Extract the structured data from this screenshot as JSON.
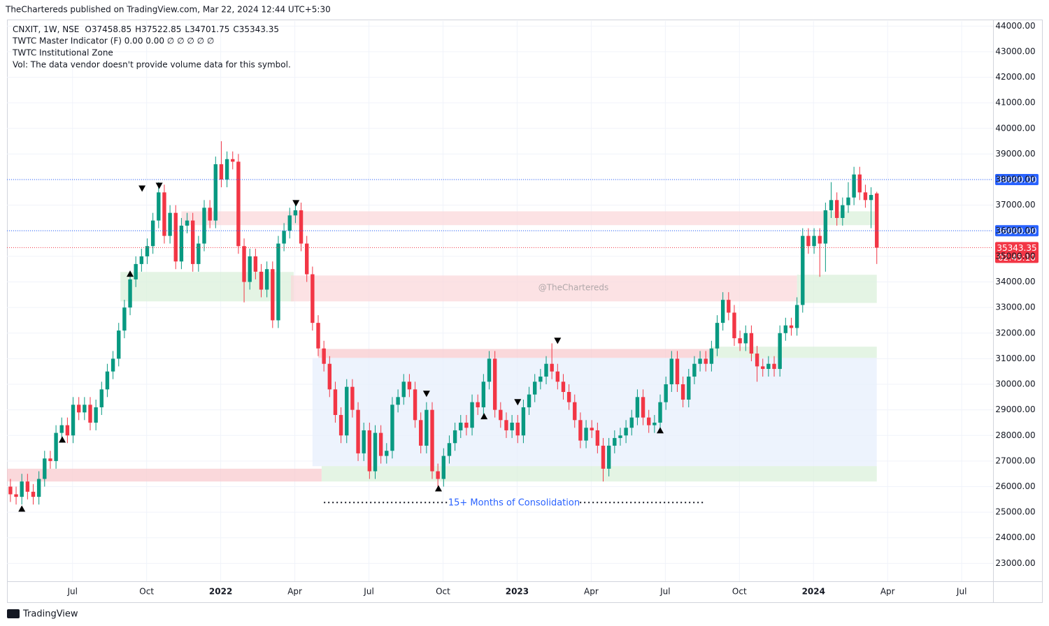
{
  "header": {
    "published": "TheChartereds published on TradingView.com, Mar 22, 2024 12:44 UTC+5:30",
    "symbol": "CNXIT, 1W, NSE",
    "indicator1": "TWTC Master Indicator (F)  0.00  0.00  ∅  ∅  ∅  ∅  ∅",
    "indicator2": "TWTC Institutional Zone",
    "volume": "Vol: The data vendor doesn't provide volume data for this symbol."
  },
  "footer": {
    "brand": "TradingView"
  },
  "chart_data": {
    "type": "candlestick",
    "ohlc_letters": [
      "O",
      "H",
      "L",
      "C"
    ],
    "up_color": "#089981",
    "down_color": "#f23645",
    "xlim": [
      -0.6,
      172.4
    ],
    "ylim": [
      22300,
      44200
    ],
    "yticks": [
      {
        "value": 23000,
        "label": "23000.00"
      },
      {
        "value": 24000,
        "label": "24000.00"
      },
      {
        "value": 25000,
        "label": "25000.00"
      },
      {
        "value": 26000,
        "label": "26000.00"
      },
      {
        "value": 27000,
        "label": "27000.00"
      },
      {
        "value": 28000,
        "label": "28000.00"
      },
      {
        "value": 29000,
        "label": "29000.00"
      },
      {
        "value": 30000,
        "label": "30000.00"
      },
      {
        "value": 31000,
        "label": "31000.00"
      },
      {
        "value": 32000,
        "label": "32000.00"
      },
      {
        "value": 33000,
        "label": "33000.00"
      },
      {
        "value": 34000,
        "label": "34000.00"
      },
      {
        "value": 35000,
        "label": "35000.00"
      },
      {
        "value": 36000,
        "label": "36000.00"
      },
      {
        "value": 37000,
        "label": "37000.00"
      },
      {
        "value": 38000,
        "label": "38000.00"
      },
      {
        "value": 39000,
        "label": "39000.00"
      },
      {
        "value": 40000,
        "label": "40000.00"
      },
      {
        "value": 41000,
        "label": "41000.00"
      },
      {
        "value": 42000,
        "label": "42000.00"
      },
      {
        "value": 43000,
        "label": "43000.00"
      },
      {
        "value": 44000,
        "label": "44000.00"
      }
    ],
    "xticks": [
      {
        "value": 10.9,
        "label": "Jul"
      },
      {
        "value": 23.9,
        "label": "Oct"
      },
      {
        "value": 36.9,
        "label": "2022"
      },
      {
        "value": 49.9,
        "label": "Apr"
      },
      {
        "value": 62.9,
        "label": "Jul"
      },
      {
        "value": 75.9,
        "label": "Oct"
      },
      {
        "value": 88.9,
        "label": "2023"
      },
      {
        "value": 101.9,
        "label": "Apr"
      },
      {
        "value": 114.9,
        "label": "Jul"
      },
      {
        "value": 127.9,
        "label": "Oct"
      },
      {
        "value": 140.9,
        "label": "2024"
      },
      {
        "value": 153.9,
        "label": "Apr"
      },
      {
        "value": 166.9,
        "label": "Jul"
      }
    ],
    "grid": true,
    "levels": [
      {
        "value": 38000,
        "label": "38000.00",
        "color": "#2962ff"
      },
      {
        "value": 36000,
        "label": "36000.00",
        "color": "#2962ff"
      }
    ],
    "countdown": "02:45:10",
    "zones": [
      {
        "x0": -0.6,
        "x1": 54.6,
        "y0": 26200,
        "y1": 26700,
        "color": "#f8c8cc"
      },
      {
        "x0": 19.3,
        "x1": 49.7,
        "y0": 33240,
        "y1": 34390,
        "color": "#d9efd9"
      },
      {
        "x0": 30,
        "x1": 143,
        "y0": 36220,
        "y1": 36760,
        "color": "#fbd5d8"
      },
      {
        "x0": 143,
        "x1": 152,
        "y0": 36220,
        "y1": 36760,
        "color": "#d9efd9"
      },
      {
        "x0": 49.2,
        "x1": 138,
        "y0": 33240,
        "y1": 34250,
        "color": "#fbd5d8"
      },
      {
        "x0": 138,
        "x1": 152,
        "y0": 33180,
        "y1": 34280,
        "color": "#d9efd9"
      },
      {
        "x0": 54,
        "x1": 123,
        "y0": 31030,
        "y1": 31380,
        "color": "#f8c8cc"
      },
      {
        "x0": 123,
        "x1": 152,
        "y0": 31030,
        "y1": 31470,
        "color": "#d9efd9"
      },
      {
        "x0": 53,
        "x1": 152,
        "y0": 26800,
        "y1": 31030,
        "color": "#e6eefc"
      },
      {
        "x0": 54.6,
        "x1": 152,
        "y0": 26200,
        "y1": 26800,
        "color": "#d9efd9"
      }
    ],
    "signals": [
      {
        "x": 23.1,
        "y": 37660,
        "dir": "down"
      },
      {
        "x": 26.1,
        "y": 37770,
        "dir": "down"
      },
      {
        "x": 50.1,
        "y": 37090,
        "dir": "down"
      },
      {
        "x": 73,
        "y": 29640,
        "dir": "down"
      },
      {
        "x": 89,
        "y": 29310,
        "dir": "down"
      },
      {
        "x": 96,
        "y": 31710,
        "dir": "down"
      },
      {
        "x": 2,
        "y": 25130,
        "dir": "up"
      },
      {
        "x": 9.1,
        "y": 27830,
        "dir": "up"
      },
      {
        "x": 21,
        "y": 34310,
        "dir": "up"
      },
      {
        "x": 75.1,
        "y": 25920,
        "dir": "up"
      },
      {
        "x": 83.1,
        "y": 28740,
        "dir": "up"
      },
      {
        "x": 114,
        "y": 28190,
        "dir": "up"
      }
    ],
    "annotation": {
      "text": "15+ Months of Consolidation",
      "x0": 55,
      "x1": 121.7,
      "y": 25380
    },
    "watermark": "@TheChartereds",
    "candles": [
      [
        26000,
        26300,
        25400,
        25700
      ],
      [
        25700,
        26000,
        25300,
        25600
      ],
      [
        25600,
        26500,
        25300,
        26200
      ],
      [
        26200,
        26500,
        25500,
        25800
      ],
      [
        25800,
        26100,
        25300,
        25600
      ],
      [
        25600,
        26600,
        25300,
        26300
      ],
      [
        26300,
        27400,
        26000,
        27100
      ],
      [
        27100,
        27400,
        26700,
        27000
      ],
      [
        27000,
        28400,
        26700,
        28100
      ],
      [
        28100,
        28700,
        27800,
        28400
      ],
      [
        28400,
        28700,
        27700,
        28000
      ],
      [
        28000,
        29500,
        27700,
        29200
      ],
      [
        29200,
        29500,
        28600,
        28900
      ],
      [
        28900,
        29500,
        28600,
        29200
      ],
      [
        29200,
        29500,
        28200,
        28500
      ],
      [
        28500,
        29400,
        28200,
        29100
      ],
      [
        29100,
        30100,
        28800,
        29800
      ],
      [
        29800,
        30800,
        29500,
        30500
      ],
      [
        30500,
        31300,
        30200,
        31000
      ],
      [
        31000,
        32400,
        30700,
        32100
      ],
      [
        32100,
        33300,
        31800,
        33000
      ],
      [
        33000,
        34400,
        32700,
        34100
      ],
      [
        34100,
        35000,
        33800,
        34700
      ],
      [
        34700,
        35300,
        34400,
        35000
      ],
      [
        35000,
        35700,
        34700,
        35400
      ],
      [
        35400,
        36700,
        35100,
        36400
      ],
      [
        36400,
        37900,
        36100,
        37500
      ],
      [
        37500,
        37800,
        35500,
        35800
      ],
      [
        35800,
        37000,
        35500,
        36700
      ],
      [
        36700,
        37000,
        34500,
        34800
      ],
      [
        34800,
        36500,
        34500,
        36200
      ],
      [
        36200,
        36700,
        35900,
        36400
      ],
      [
        36400,
        36700,
        34400,
        34700
      ],
      [
        34700,
        35800,
        34400,
        35500
      ],
      [
        35500,
        37200,
        35200,
        36900
      ],
      [
        36900,
        37200,
        36100,
        36400
      ],
      [
        36400,
        38900,
        36100,
        38600
      ],
      [
        38600,
        39500,
        37700,
        38000
      ],
      [
        38000,
        39100,
        37700,
        38800
      ],
      [
        38800,
        39100,
        38400,
        38700
      ],
      [
        38700,
        39000,
        35100,
        35400
      ],
      [
        35400,
        35700,
        33200,
        34000
      ],
      [
        34000,
        35300,
        33700,
        35000
      ],
      [
        35000,
        35300,
        34100,
        34400
      ],
      [
        34400,
        34700,
        33400,
        33700
      ],
      [
        33700,
        34800,
        33400,
        34500
      ],
      [
        34500,
        34800,
        32200,
        32500
      ],
      [
        32500,
        35800,
        32200,
        35500
      ],
      [
        35500,
        36300,
        35200,
        36000
      ],
      [
        36000,
        36900,
        35700,
        36600
      ],
      [
        36600,
        37100,
        36300,
        36800
      ],
      [
        36800,
        37100,
        35200,
        35500
      ],
      [
        35500,
        35800,
        34000,
        34300
      ],
      [
        34300,
        34600,
        32100,
        32400
      ],
      [
        32400,
        32700,
        31100,
        31400
      ],
      [
        31400,
        31700,
        30500,
        30800
      ],
      [
        30800,
        31100,
        29500,
        29800
      ],
      [
        29800,
        30100,
        28500,
        28800
      ],
      [
        28800,
        29100,
        27700,
        28000
      ],
      [
        28000,
        30200,
        27700,
        29900
      ],
      [
        29900,
        30200,
        28700,
        29000
      ],
      [
        29000,
        29300,
        27000,
        27300
      ],
      [
        27300,
        28500,
        27000,
        28200
      ],
      [
        28200,
        28500,
        26300,
        26600
      ],
      [
        26600,
        28400,
        26300,
        28100
      ],
      [
        28100,
        28400,
        26900,
        27200
      ],
      [
        27200,
        27700,
        26900,
        27400
      ],
      [
        27400,
        29500,
        27100,
        29200
      ],
      [
        29200,
        29800,
        28900,
        29500
      ],
      [
        29500,
        30400,
        29200,
        30100
      ],
      [
        30100,
        30400,
        29500,
        29800
      ],
      [
        29800,
        30100,
        28300,
        28600
      ],
      [
        28600,
        28900,
        27300,
        27600
      ],
      [
        27600,
        29300,
        27300,
        29000
      ],
      [
        29000,
        29300,
        26300,
        26600
      ],
      [
        26600,
        26900,
        26000,
        26300
      ],
      [
        26300,
        27500,
        26000,
        27200
      ],
      [
        27200,
        28000,
        26900,
        27700
      ],
      [
        27700,
        28500,
        27400,
        28200
      ],
      [
        28200,
        28800,
        27900,
        28500
      ],
      [
        28500,
        28800,
        28000,
        28300
      ],
      [
        28300,
        29600,
        28000,
        29300
      ],
      [
        29300,
        29600,
        28800,
        29100
      ],
      [
        29100,
        30400,
        28800,
        30100
      ],
      [
        30100,
        31300,
        29800,
        31000
      ],
      [
        31000,
        31300,
        28700,
        29000
      ],
      [
        29000,
        29300,
        28300,
        28600
      ],
      [
        28600,
        28900,
        27900,
        28200
      ],
      [
        28200,
        28800,
        27900,
        28500
      ],
      [
        28500,
        28800,
        27700,
        28000
      ],
      [
        28000,
        29400,
        27700,
        29100
      ],
      [
        29100,
        29900,
        28800,
        29600
      ],
      [
        29600,
        30400,
        29300,
        30100
      ],
      [
        30100,
        30600,
        29800,
        30300
      ],
      [
        30300,
        31100,
        30000,
        30800
      ],
      [
        30800,
        31600,
        30200,
        30500
      ],
      [
        30500,
        30800,
        29800,
        30100
      ],
      [
        30100,
        30400,
        29400,
        29700
      ],
      [
        29700,
        30000,
        29000,
        29300
      ],
      [
        29300,
        29600,
        28300,
        28600
      ],
      [
        28600,
        28900,
        27500,
        27800
      ],
      [
        27800,
        28600,
        27500,
        28300
      ],
      [
        28300,
        28600,
        27900,
        28200
      ],
      [
        28200,
        28500,
        27300,
        27600
      ],
      [
        27600,
        27900,
        26200,
        26700
      ],
      [
        26700,
        27900,
        26400,
        27600
      ],
      [
        27600,
        28200,
        27300,
        27900
      ],
      [
        27900,
        28300,
        27600,
        28000
      ],
      [
        28000,
        28600,
        27700,
        28300
      ],
      [
        28300,
        29000,
        28000,
        28700
      ],
      [
        28700,
        29800,
        28400,
        29500
      ],
      [
        29500,
        29800,
        28400,
        28700
      ],
      [
        28700,
        29000,
        28100,
        28400
      ],
      [
        28400,
        28800,
        28100,
        28500
      ],
      [
        28500,
        29600,
        28200,
        29300
      ],
      [
        29300,
        30300,
        29000,
        30000
      ],
      [
        30000,
        31300,
        29700,
        31000
      ],
      [
        31000,
        31300,
        29700,
        30000
      ],
      [
        30000,
        30300,
        29100,
        29400
      ],
      [
        29400,
        30600,
        29100,
        30300
      ],
      [
        30300,
        31100,
        30000,
        30800
      ],
      [
        30800,
        31300,
        30500,
        31000
      ],
      [
        31000,
        31300,
        30500,
        30800
      ],
      [
        30800,
        31700,
        30500,
        31400
      ],
      [
        31400,
        32700,
        31100,
        32400
      ],
      [
        32400,
        33600,
        32100,
        33300
      ],
      [
        33300,
        33600,
        32500,
        32800
      ],
      [
        32800,
        33100,
        31500,
        31800
      ],
      [
        31800,
        32100,
        31300,
        31600
      ],
      [
        31600,
        32300,
        31300,
        32000
      ],
      [
        32000,
        32300,
        30900,
        31200
      ],
      [
        31200,
        31500,
        30100,
        30700
      ],
      [
        30700,
        31000,
        30300,
        30600
      ],
      [
        30600,
        31100,
        30300,
        30800
      ],
      [
        30800,
        31100,
        30300,
        30600
      ],
      [
        30600,
        32300,
        30300,
        32000
      ],
      [
        32000,
        32600,
        31700,
        32300
      ],
      [
        32300,
        32600,
        31900,
        32200
      ],
      [
        32200,
        33400,
        31900,
        33100
      ],
      [
        33100,
        36100,
        32800,
        35800
      ],
      [
        35800,
        36100,
        35100,
        35400
      ],
      [
        35400,
        36100,
        35100,
        35800
      ],
      [
        35800,
        36100,
        34200,
        35500
      ],
      [
        35500,
        37100,
        34400,
        36800
      ],
      [
        36800,
        37900,
        36500,
        37200
      ],
      [
        37200,
        37500,
        36200,
        36500
      ],
      [
        36500,
        37300,
        36200,
        37000
      ],
      [
        37000,
        37900,
        36700,
        37300
      ],
      [
        37300,
        38500,
        37000,
        38200
      ],
      [
        38200,
        38500,
        37200,
        37500
      ],
      [
        37500,
        37800,
        36900,
        37200
      ],
      [
        37200,
        37700,
        36100,
        37400
      ],
      [
        37458.85,
        37522.85,
        34701.75,
        35343.35
      ]
    ]
  }
}
